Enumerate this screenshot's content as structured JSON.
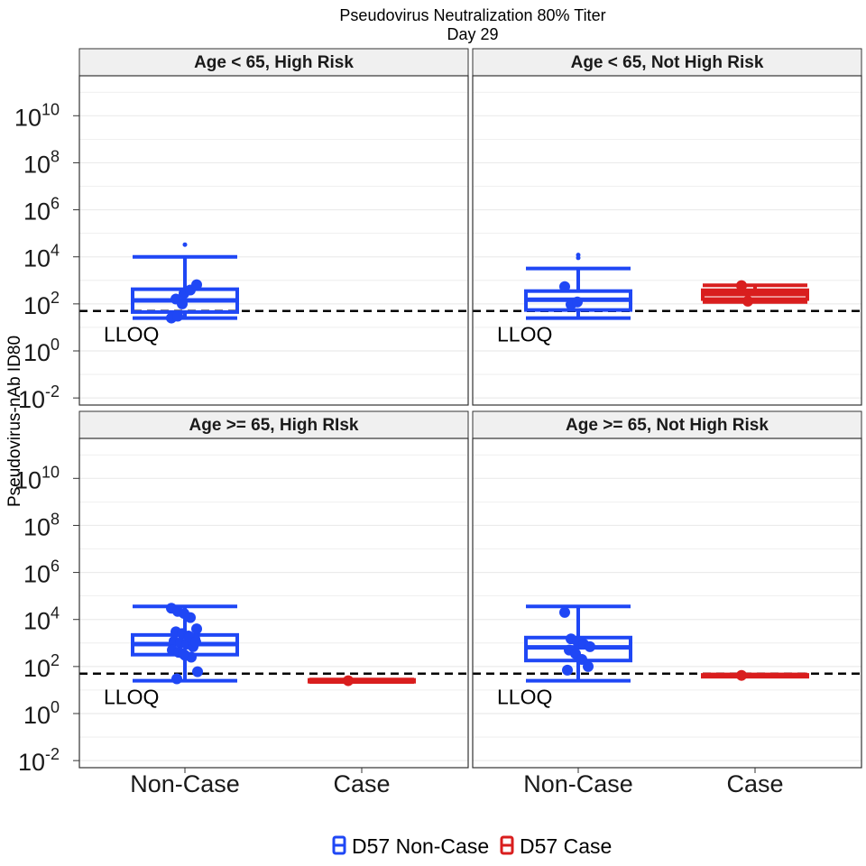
{
  "chart_data": {
    "type": "box",
    "title": "Pseudovirus Neutralization 80% Titer",
    "subtitle": "Day 29",
    "ylabel": "Pseudovirus-nAb ID80",
    "y_scale": "log10",
    "ylim": [
      0.005,
      500000000000
    ],
    "y_ticks": [
      {
        "base": "10",
        "exp": "10",
        "value": 10000000000
      },
      {
        "base": "10",
        "exp": "8",
        "value": 100000000
      },
      {
        "base": "10",
        "exp": "6",
        "value": 1000000
      },
      {
        "base": "10",
        "exp": "4",
        "value": 10000
      },
      {
        "base": "10",
        "exp": "2",
        "value": 100
      },
      {
        "base": "10",
        "exp": "0",
        "value": 1
      },
      {
        "base": "10",
        "exp": "-2",
        "value": 0.01
      }
    ],
    "categories": [
      "Non-Case",
      "Case"
    ],
    "lloq": {
      "label": "LLOQ",
      "value": 50
    },
    "legend": {
      "position": "bottom",
      "entries": [
        {
          "label": "D57 Non-Case",
          "color": "#1f47f5"
        },
        {
          "label": "D57 Case",
          "color": "#d91e1e"
        }
      ]
    },
    "panels": [
      {
        "label": "Age < 65, High Risk",
        "boxes": [
          {
            "category": "Non-Case",
            "color": "#1f47f5",
            "min": 25,
            "q1": 45,
            "median": 140,
            "q3": 420,
            "max": 10000,
            "outliers": [
              33000
            ],
            "points": [
              25,
              30,
              280,
              390,
              650,
              160,
              100
            ]
          },
          null
        ]
      },
      {
        "label": "Age < 65, Not High Risk",
        "boxes": [
          {
            "category": "Non-Case",
            "color": "#1f47f5",
            "min": 25,
            "q1": 55,
            "median": 150,
            "q3": 350,
            "max": 3200,
            "outliers": [
              9000,
              12000
            ],
            "points": [
              540,
              95,
              120
            ]
          },
          {
            "category": "Case",
            "color": "#d91e1e",
            "min": 120,
            "q1": 160,
            "median": 260,
            "q3": 380,
            "max": 620,
            "outliers": [],
            "points": [
              600,
              130
            ]
          }
        ]
      },
      {
        "label": "Age >= 65, High RIsk",
        "boxes": [
          {
            "category": "Non-Case",
            "color": "#1f47f5",
            "min": 25,
            "q1": 320,
            "median": 900,
            "q3": 2200,
            "max": 36000,
            "outliers": [],
            "points": [
              30000,
              22000,
              18000,
              12000,
              4000,
              3000,
              2500,
              2000,
              1500,
              1200,
              1000,
              900,
              700,
              500,
              400,
              300,
              250,
              60,
              30,
              350,
              1800,
              1100
            ]
          },
          {
            "category": "Case",
            "color": "#d91e1e",
            "min": 22,
            "q1": 23,
            "median": 25,
            "q3": 27,
            "max": 28,
            "outliers": [],
            "points": [
              25
            ]
          }
        ]
      },
      {
        "label": "Age >= 65, Not High Risk",
        "boxes": [
          {
            "category": "Non-Case",
            "color": "#1f47f5",
            "min": 25,
            "q1": 180,
            "median": 650,
            "q3": 1700,
            "max": 36000,
            "outliers": [],
            "points": [
              20000,
              1500,
              1200,
              900,
              700,
              500,
              350,
              200,
              100,
              70
            ]
          },
          {
            "category": "Case",
            "color": "#d91e1e",
            "min": 38,
            "q1": 40,
            "median": 42,
            "q3": 44,
            "max": 46,
            "outliers": [],
            "points": [
              42
            ]
          }
        ]
      }
    ]
  }
}
